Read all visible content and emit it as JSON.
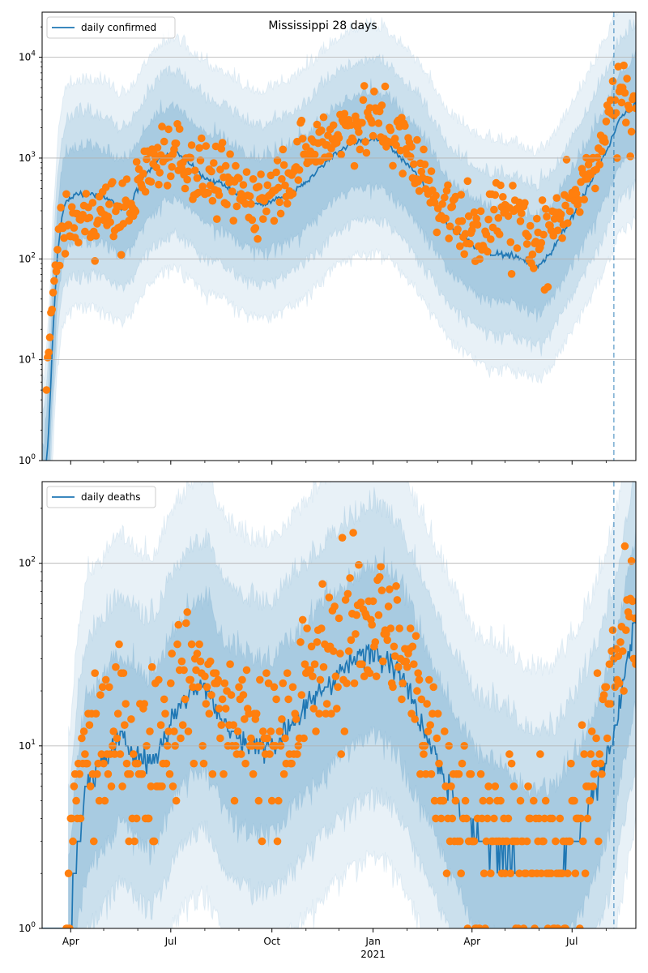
{
  "chart_data": [
    {
      "type": "line",
      "title": "Mississippi 28 days",
      "legend": {
        "label": "daily confirmed",
        "placement": "top-left"
      },
      "yscale": "log",
      "ylim": [
        1,
        28000
      ],
      "y_ticks": [
        {
          "value": 1,
          "base": "10",
          "exp": "0"
        },
        {
          "value": 10,
          "base": "10",
          "exp": "1"
        },
        {
          "value": 100,
          "base": "10",
          "exp": "2"
        },
        {
          "value": 1000,
          "base": "10",
          "exp": "3"
        },
        {
          "value": 10000,
          "base": "10",
          "exp": "4"
        }
      ],
      "xlim_days": [
        0,
        540
      ],
      "x_ticks": [
        {
          "day": 26,
          "label": "Apr"
        },
        {
          "day": 117,
          "label": "Jul"
        },
        {
          "day": 209,
          "label": "Oct"
        },
        {
          "day": 301,
          "label": "Jan",
          "sublabel": "2021"
        },
        {
          "day": 391,
          "label": "Apr"
        },
        {
          "day": 482,
          "label": "Jul"
        }
      ],
      "forecast_day": 520,
      "series": [
        {
          "name": "model median (daily confirmed)",
          "knots": [
            [
              2,
              0.5
            ],
            [
              6,
              2
            ],
            [
              10,
              20
            ],
            [
              14,
              110
            ],
            [
              18,
              260
            ],
            [
              22,
              380
            ],
            [
              30,
              440
            ],
            [
              45,
              450
            ],
            [
              60,
              400
            ],
            [
              70,
              320
            ],
            [
              80,
              360
            ],
            [
              95,
              700
            ],
            [
              110,
              1050
            ],
            [
              122,
              1150
            ],
            [
              135,
              850
            ],
            [
              150,
              620
            ],
            [
              165,
              550
            ],
            [
              185,
              380
            ],
            [
              200,
              340
            ],
            [
              215,
              400
            ],
            [
              230,
              480
            ],
            [
              245,
              650
            ],
            [
              265,
              1100
            ],
            [
              285,
              1450
            ],
            [
              300,
              1550
            ],
            [
              312,
              1450
            ],
            [
              325,
              1050
            ],
            [
              340,
              700
            ],
            [
              355,
              400
            ],
            [
              370,
              210
            ],
            [
              385,
              160
            ],
            [
              395,
              130
            ],
            [
              410,
              110
            ],
            [
              425,
              110
            ],
            [
              440,
              95
            ],
            [
              450,
              85
            ],
            [
              462,
              110
            ],
            [
              472,
              170
            ],
            [
              485,
              300
            ],
            [
              500,
              600
            ],
            [
              515,
              1300
            ],
            [
              525,
              2400
            ],
            [
              540,
              3500
            ]
          ]
        },
        {
          "name": "observed (daily confirmed)",
          "knots": [
            [
              4,
              5
            ],
            [
              8,
              25
            ],
            [
              12,
              90
            ],
            [
              18,
              180
            ],
            [
              30,
              230
            ],
            [
              45,
              260
            ],
            [
              60,
              300
            ],
            [
              70,
              260
            ],
            [
              80,
              340
            ],
            [
              95,
              750
            ],
            [
              110,
              1150
            ],
            [
              122,
              1200
            ],
            [
              135,
              850
            ],
            [
              150,
              620
            ],
            [
              165,
              520
            ],
            [
              185,
              420
            ],
            [
              200,
              380
            ],
            [
              215,
              600
            ],
            [
              230,
              850
            ],
            [
              245,
              1200
            ],
            [
              265,
              1800
            ],
            [
              285,
              2200
            ],
            [
              300,
              2350
            ],
            [
              312,
              2100
            ],
            [
              325,
              1500
            ],
            [
              340,
              900
            ],
            [
              355,
              450
            ],
            [
              370,
              300
            ],
            [
              385,
              200
            ],
            [
              395,
              180
            ],
            [
              410,
              260
            ],
            [
              425,
              300
            ],
            [
              440,
              200
            ],
            [
              450,
              170
            ],
            [
              462,
              220
            ],
            [
              472,
              300
            ],
            [
              485,
              450
            ],
            [
              500,
              900
            ],
            [
              515,
              2500
            ],
            [
              525,
              4500
            ],
            [
              540,
              4000
            ]
          ]
        }
      ]
    },
    {
      "type": "line",
      "title": "",
      "legend": {
        "label": "daily deaths",
        "placement": "top-left"
      },
      "yscale": "log",
      "ylim": [
        1,
        280
      ],
      "y_ticks": [
        {
          "value": 1,
          "base": "10",
          "exp": "0"
        },
        {
          "value": 10,
          "base": "10",
          "exp": "1"
        },
        {
          "value": 100,
          "base": "10",
          "exp": "2"
        }
      ],
      "xlim_days": [
        0,
        540
      ],
      "x_ticks": [
        {
          "day": 26,
          "label": "Apr"
        },
        {
          "day": 117,
          "label": "Jul"
        },
        {
          "day": 209,
          "label": "Oct"
        },
        {
          "day": 301,
          "label": "Jan",
          "sublabel": "2021"
        },
        {
          "day": 391,
          "label": "Apr"
        },
        {
          "day": 482,
          "label": "Jul"
        }
      ],
      "forecast_day": 520,
      "series": [
        {
          "name": "model median (daily deaths)",
          "knots": [
            [
              22,
              0.8
            ],
            [
              26,
              1
            ],
            [
              32,
              3
            ],
            [
              40,
              6
            ],
            [
              55,
              8
            ],
            [
              70,
              11
            ],
            [
              80,
              10
            ],
            [
              95,
              8
            ],
            [
              105,
              9
            ],
            [
              120,
              15
            ],
            [
              135,
              20
            ],
            [
              150,
              22
            ],
            [
              165,
              13
            ],
            [
              180,
              11
            ],
            [
              195,
              10
            ],
            [
              210,
              10
            ],
            [
              225,
              13
            ],
            [
              240,
              16
            ],
            [
              260,
              22
            ],
            [
              280,
              28
            ],
            [
              300,
              34
            ],
            [
              312,
              32
            ],
            [
              325,
              26
            ],
            [
              340,
              16
            ],
            [
              355,
              10
            ],
            [
              370,
              6
            ],
            [
              385,
              4
            ],
            [
              395,
              3
            ],
            [
              410,
              2.8
            ],
            [
              425,
              2.5
            ],
            [
              440,
              2
            ],
            [
              450,
              2
            ],
            [
              465,
              2
            ],
            [
              475,
              2.5
            ],
            [
              490,
              3.5
            ],
            [
              505,
              6
            ],
            [
              520,
              12
            ],
            [
              530,
              25
            ],
            [
              540,
              50
            ]
          ]
        },
        {
          "name": "observed (daily deaths)",
          "knots": [
            [
              22,
              1
            ],
            [
              30,
              4
            ],
            [
              40,
              9
            ],
            [
              55,
              10
            ],
            [
              70,
              12
            ],
            [
              80,
              9
            ],
            [
              95,
              8
            ],
            [
              105,
              10
            ],
            [
              120,
              17
            ],
            [
              135,
              25
            ],
            [
              150,
              20
            ],
            [
              165,
              15
            ],
            [
              180,
              12
            ],
            [
              195,
              11
            ],
            [
              210,
              10
            ],
            [
              225,
              15
            ],
            [
              240,
              20
            ],
            [
              260,
              30
            ],
            [
              280,
              40
            ],
            [
              300,
              55
            ],
            [
              312,
              45
            ],
            [
              325,
              30
            ],
            [
              340,
              20
            ],
            [
              355,
              12
            ],
            [
              370,
              6
            ],
            [
              385,
              4
            ],
            [
              395,
              3
            ],
            [
              410,
              3
            ],
            [
              425,
              3
            ],
            [
              440,
              2.5
            ],
            [
              450,
              2.5
            ],
            [
              465,
              2.5
            ],
            [
              475,
              3
            ],
            [
              490,
              4
            ],
            [
              505,
              9
            ],
            [
              520,
              25
            ],
            [
              530,
              45
            ],
            [
              540,
              60
            ]
          ]
        }
      ]
    }
  ]
}
